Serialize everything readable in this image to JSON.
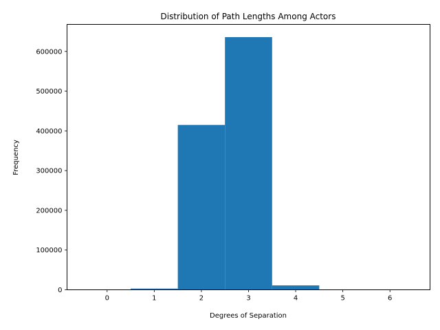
{
  "chart_data": {
    "type": "bar",
    "title": "Distribution of Path Lengths Among Actors",
    "xlabel": "Degrees of Separation",
    "ylabel": "Frequency",
    "bins": [
      {
        "center": 0,
        "value": 0
      },
      {
        "center": 1,
        "value": 3000
      },
      {
        "center": 2,
        "value": 415000
      },
      {
        "center": 3,
        "value": 636000
      },
      {
        "center": 4,
        "value": 11000
      },
      {
        "center": 5,
        "value": 0
      },
      {
        "center": 6,
        "value": 0
      }
    ],
    "bin_width": 1,
    "xlim": [
      -0.85,
      6.85
    ],
    "ylim": [
      0,
      668000
    ],
    "xticks": [
      "0",
      "1",
      "2",
      "3",
      "4",
      "5",
      "6"
    ],
    "yticks": [
      {
        "value": 0,
        "label": "0"
      },
      {
        "value": 100000,
        "label": "100000"
      },
      {
        "value": 200000,
        "label": "200000"
      },
      {
        "value": 300000,
        "label": "300000"
      },
      {
        "value": 400000,
        "label": "400000"
      },
      {
        "value": 500000,
        "label": "500000"
      },
      {
        "value": 600000,
        "label": "600000"
      }
    ],
    "bar_color": "#1f77b4",
    "grid": false,
    "legend": "none"
  }
}
